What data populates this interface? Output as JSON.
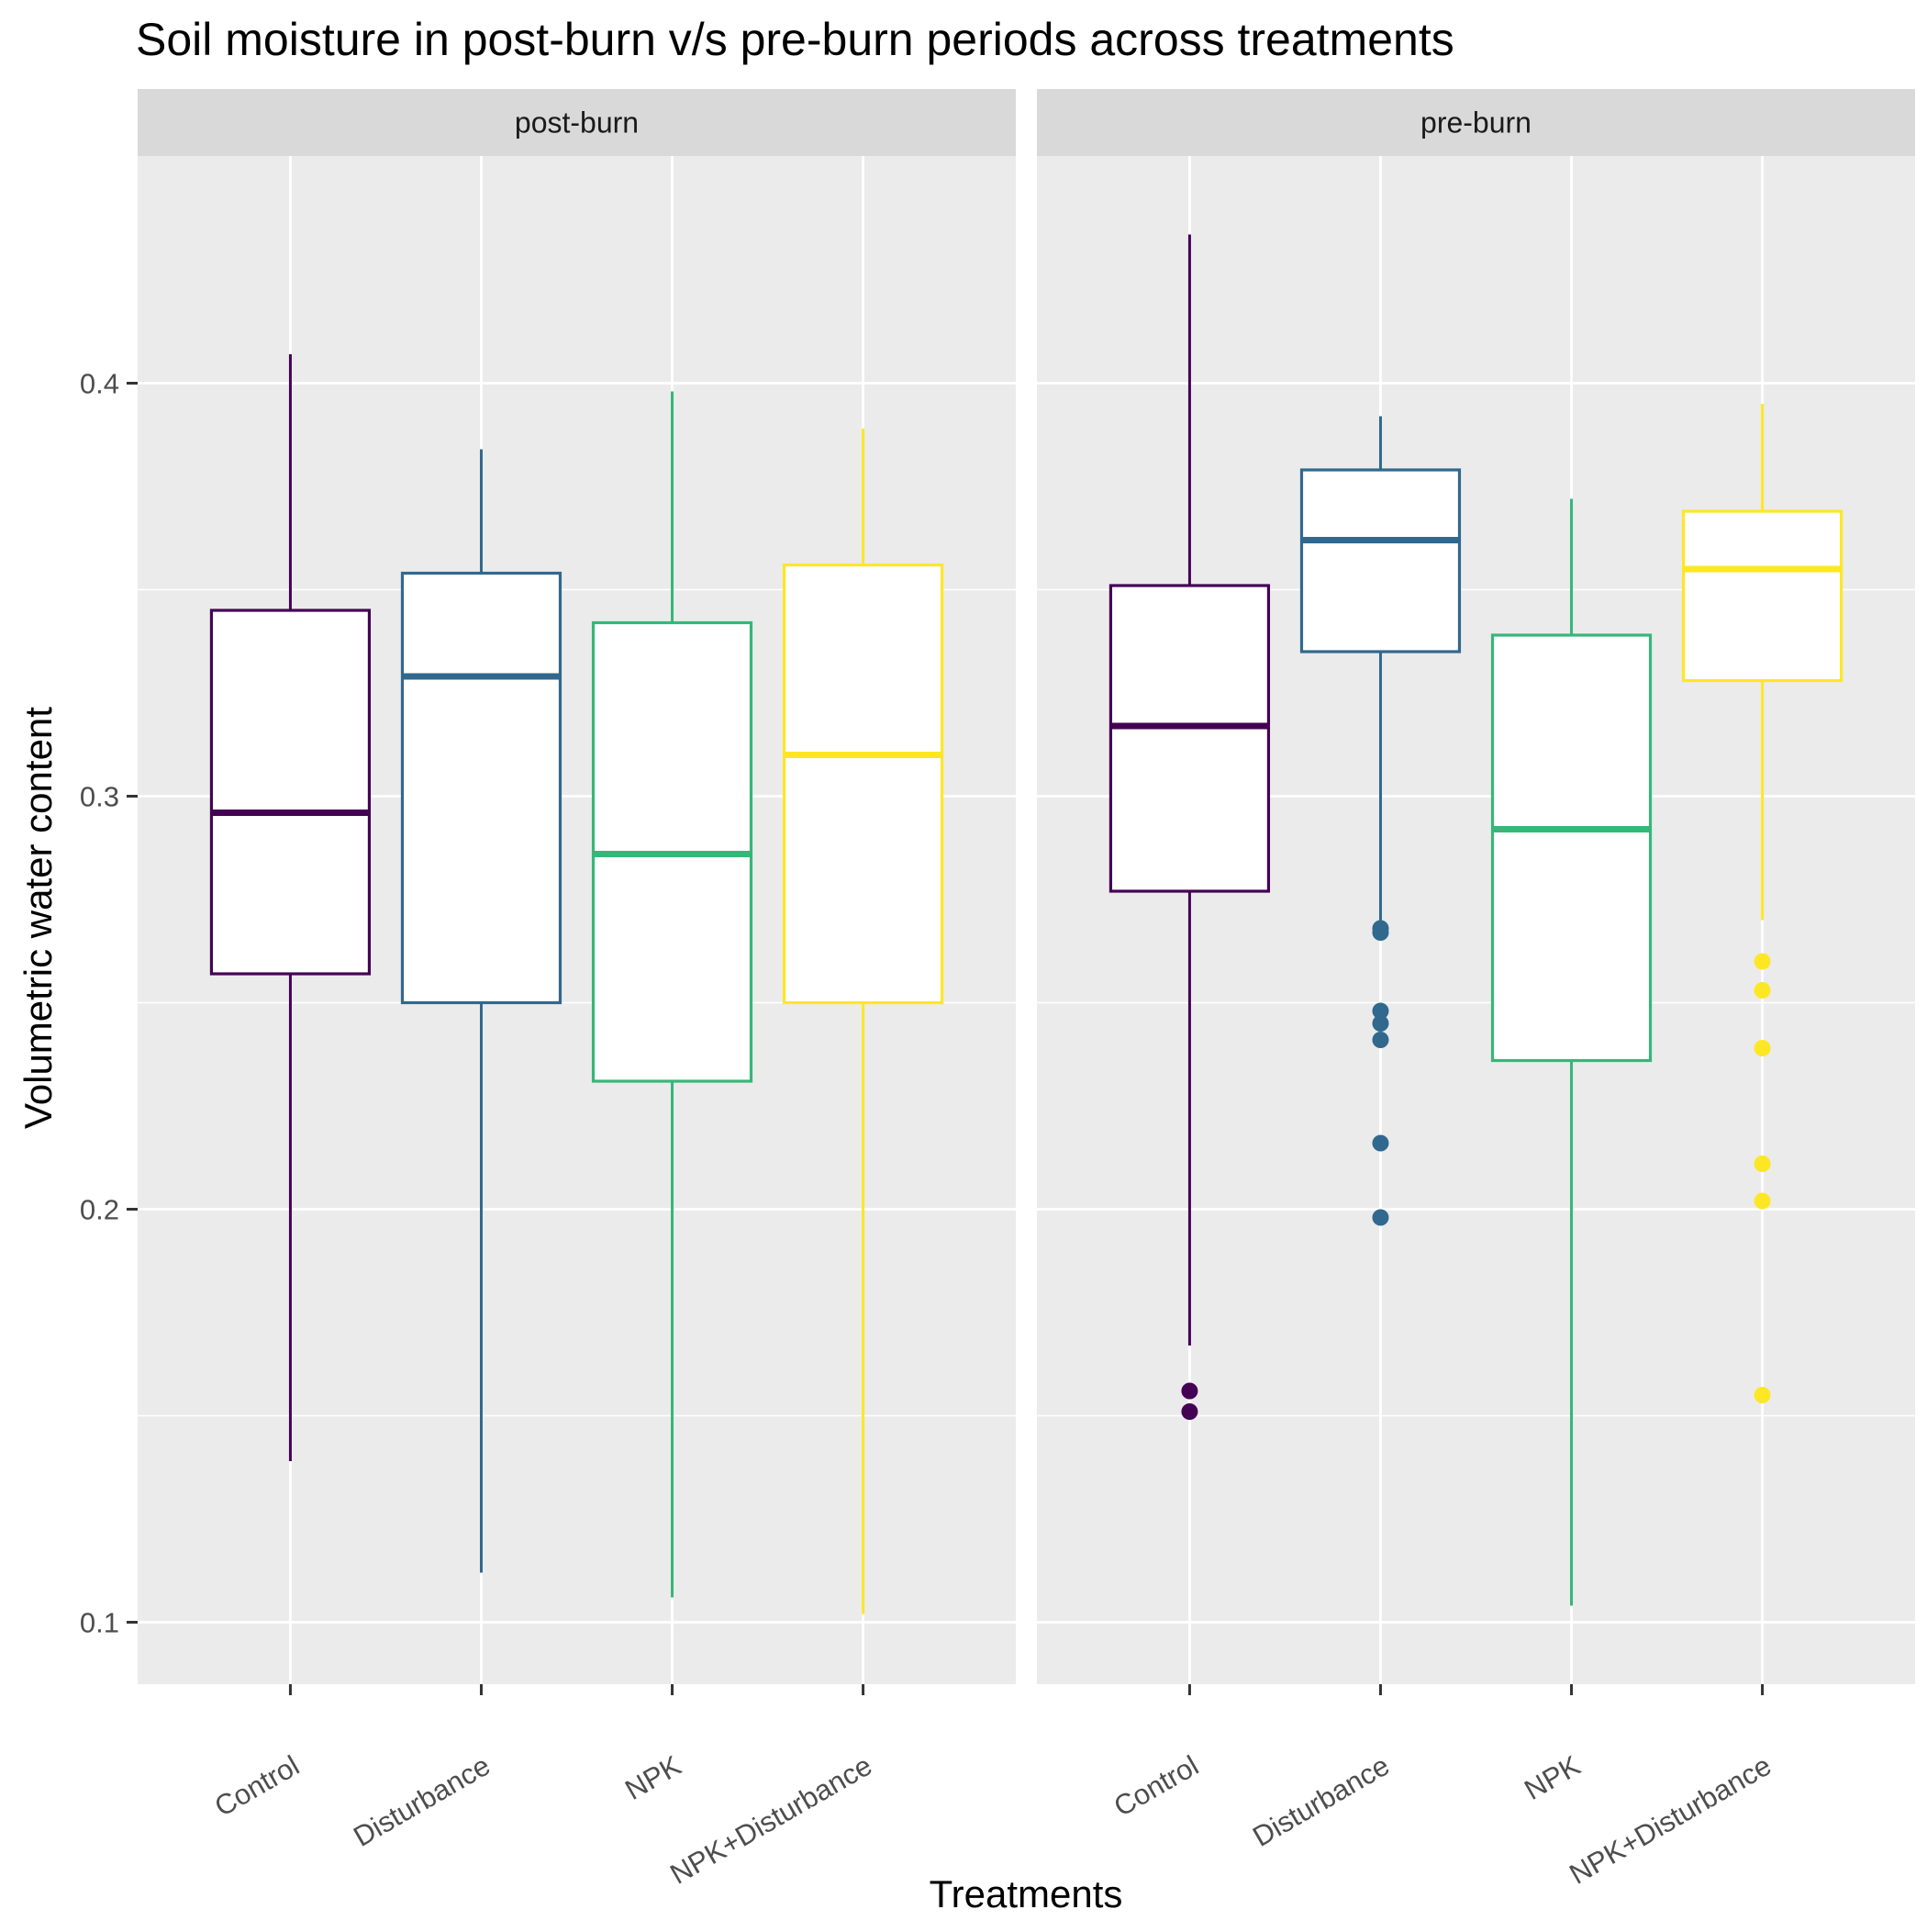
{
  "chart_data": {
    "type": "boxplot",
    "title": "Soil moisture in post-burn v/s pre-burn periods across treatments",
    "xlabel": "Treatments",
    "ylabel": "Volumetric water content",
    "ylim": [
      0.085,
      0.455
    ],
    "yticks": [
      "0.1",
      "0.2",
      "0.3",
      "0.4"
    ],
    "grid": true,
    "categories": [
      "Control",
      "Disturbance",
      "NPK",
      "NPK+Disturbance"
    ],
    "colors": {
      "Control": "#440154",
      "Disturbance": "#31688e",
      "NPK": "#35b779",
      "NPK+Disturbance": "#fde725"
    },
    "panels": [
      {
        "label": "post-burn",
        "boxes": [
          {
            "category": "Control",
            "lower_whisker": 0.139,
            "q1": 0.257,
            "median": 0.296,
            "q3": 0.345,
            "upper_whisker": 0.407,
            "outliers": []
          },
          {
            "category": "Disturbance",
            "lower_whisker": 0.112,
            "q1": 0.25,
            "median": 0.329,
            "q3": 0.354,
            "upper_whisker": 0.384,
            "outliers": []
          },
          {
            "category": "NPK",
            "lower_whisker": 0.106,
            "q1": 0.231,
            "median": 0.286,
            "q3": 0.342,
            "upper_whisker": 0.398,
            "outliers": []
          },
          {
            "category": "NPK+Disturbance",
            "lower_whisker": 0.102,
            "q1": 0.25,
            "median": 0.31,
            "q3": 0.356,
            "upper_whisker": 0.389,
            "outliers": []
          }
        ]
      },
      {
        "label": "pre-burn",
        "boxes": [
          {
            "category": "Control",
            "lower_whisker": 0.167,
            "q1": 0.277,
            "median": 0.317,
            "q3": 0.351,
            "upper_whisker": 0.436,
            "outliers": [
              0.156,
              0.151
            ]
          },
          {
            "category": "Disturbance",
            "lower_whisker": 0.27,
            "q1": 0.335,
            "median": 0.362,
            "q3": 0.379,
            "upper_whisker": 0.392,
            "outliers": [
              0.268,
              0.267,
              0.248,
              0.245,
              0.241,
              0.216,
              0.198
            ]
          },
          {
            "category": "NPK",
            "lower_whisker": 0.104,
            "q1": 0.236,
            "median": 0.292,
            "q3": 0.339,
            "upper_whisker": 0.372,
            "outliers": []
          },
          {
            "category": "NPK+Disturbance",
            "lower_whisker": 0.27,
            "q1": 0.328,
            "median": 0.355,
            "q3": 0.369,
            "upper_whisker": 0.395,
            "outliers": [
              0.26,
              0.253,
              0.239,
              0.211,
              0.202,
              0.155
            ]
          }
        ]
      }
    ]
  }
}
